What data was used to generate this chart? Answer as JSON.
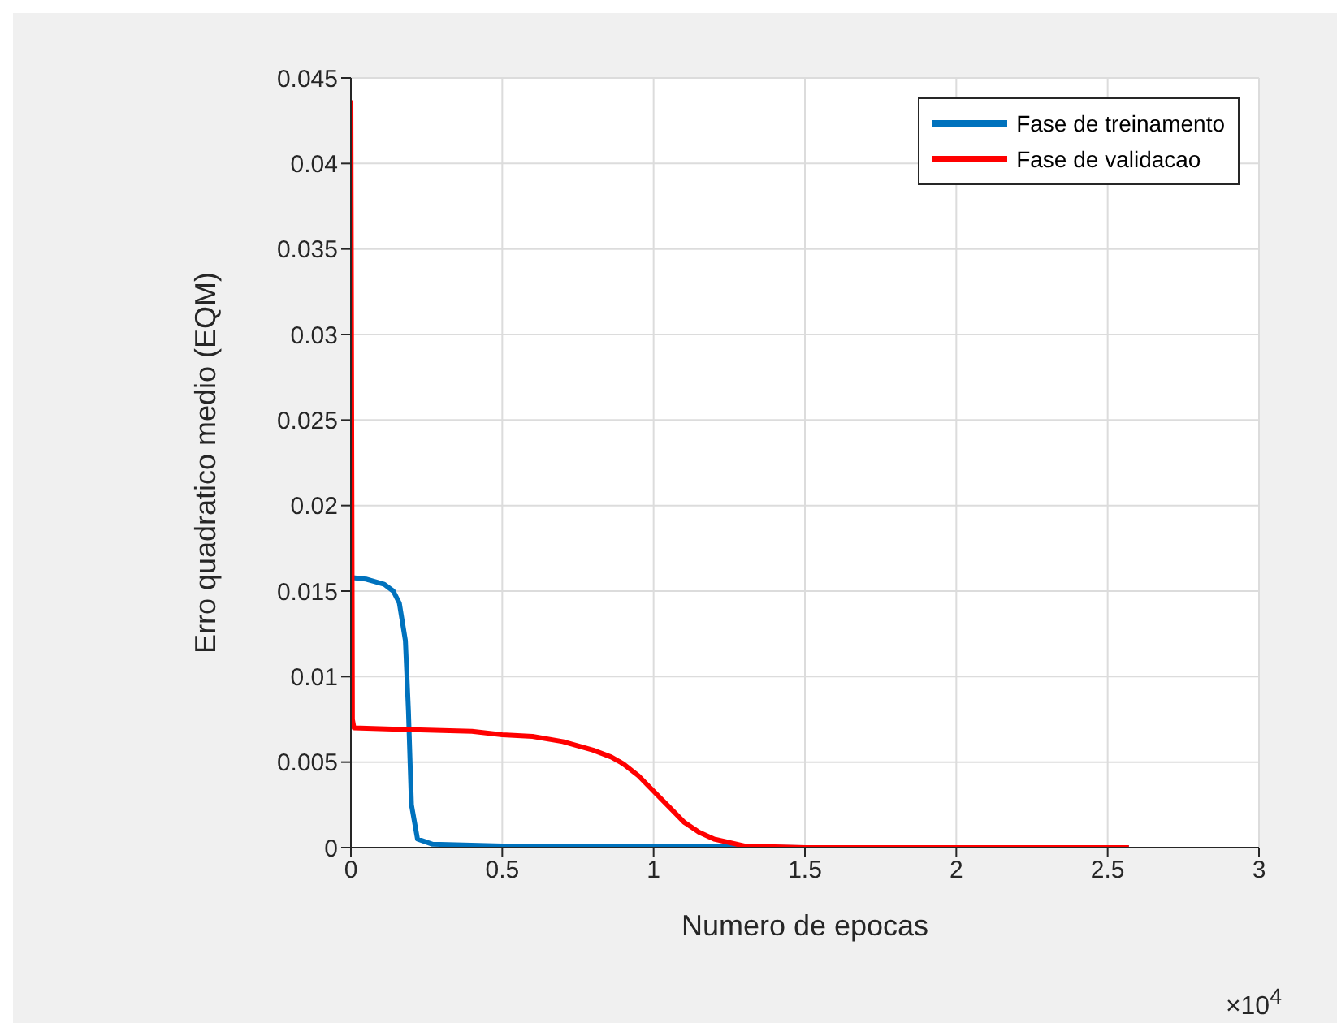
{
  "chart_data": {
    "type": "line",
    "xlabel": "Numero de epocas",
    "ylabel": "Erro quadratico medio (EQM)",
    "annotations": [
      "×10$^{4}$"
    ],
    "xlim": [
      0,
      3
    ],
    "xticks": [
      0,
      0.5,
      1,
      1.5,
      2,
      2.5,
      3
    ],
    "ylim": [
      0,
      0.045
    ],
    "yticks": [
      0,
      0.005,
      0.01,
      0.015,
      0.02,
      0.025,
      0.03,
      0.035,
      0.04,
      0.045
    ],
    "grid": true,
    "legend": "top right",
    "line_style": "solid",
    "marker": "none",
    "series": [
      {
        "name": "Fase de treinamento",
        "color": "#0072bd",
        "x": [
          0,
          0.05,
          0.11,
          0.14,
          0.16,
          0.18,
          0.19,
          0.2,
          0.22,
          0.27,
          0.5,
          1.0,
          1.5,
          2.57
        ],
        "values": [
          0.0158,
          0.0157,
          0.0154,
          0.015,
          0.0143,
          0.0121,
          0.008,
          0.0025,
          0.0005,
          0.0002,
          0.0001,
          0.0001,
          0,
          0
        ]
      },
      {
        "name": "Fase de validacao",
        "color": "#ff0000",
        "x": [
          0,
          0.005,
          0.01,
          0.2,
          0.4,
          0.5,
          0.6,
          0.7,
          0.8,
          0.86,
          0.9,
          0.95,
          1.0,
          1.05,
          1.1,
          1.15,
          1.2,
          1.3,
          1.5,
          2.0,
          2.57
        ],
        "values": [
          0.0437,
          0.0075,
          0.007,
          0.0069,
          0.0068,
          0.0066,
          0.0065,
          0.0062,
          0.0057,
          0.0053,
          0.0049,
          0.0042,
          0.0033,
          0.0024,
          0.0015,
          0.0009,
          0.0005,
          0.0001,
          0,
          0,
          0
        ]
      }
    ]
  }
}
